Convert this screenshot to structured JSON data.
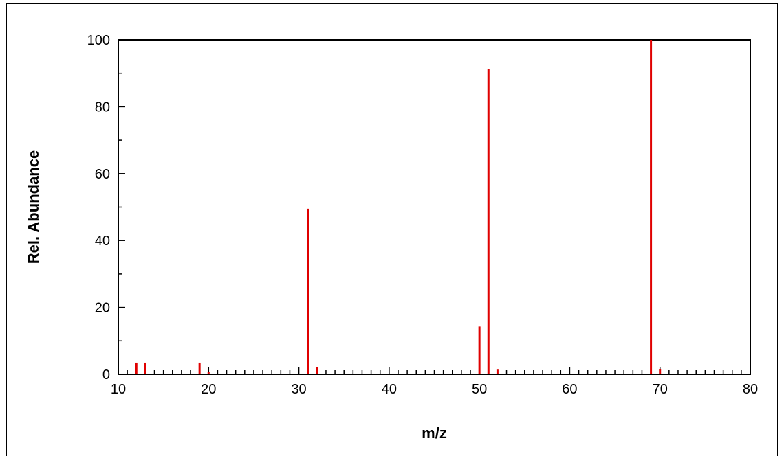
{
  "chart_data": {
    "type": "bar",
    "xlabel": "m/z",
    "ylabel": "Rel. Abundance",
    "xlim": [
      10,
      80
    ],
    "ylim": [
      0,
      100
    ],
    "x_major_ticks": [
      10,
      20,
      30,
      40,
      50,
      60,
      70,
      80
    ],
    "y_major_ticks": [
      0,
      20,
      40,
      60,
      80,
      100
    ],
    "x_minor_step": 1,
    "y_minor_step": 10,
    "grid": false,
    "legend": "none",
    "series": [
      {
        "color": "#e00000",
        "points": [
          {
            "x": 12,
            "y": 3.5
          },
          {
            "x": 13,
            "y": 3.5
          },
          {
            "x": 19,
            "y": 3.5
          },
          {
            "x": 20,
            "y": 0.8
          },
          {
            "x": 31,
            "y": 49.5
          },
          {
            "x": 32,
            "y": 2.2
          },
          {
            "x": 50,
            "y": 14.3
          },
          {
            "x": 51,
            "y": 91.2
          },
          {
            "x": 52,
            "y": 1.4
          },
          {
            "x": 69,
            "y": 100
          },
          {
            "x": 70,
            "y": 1.6
          }
        ]
      }
    ]
  }
}
